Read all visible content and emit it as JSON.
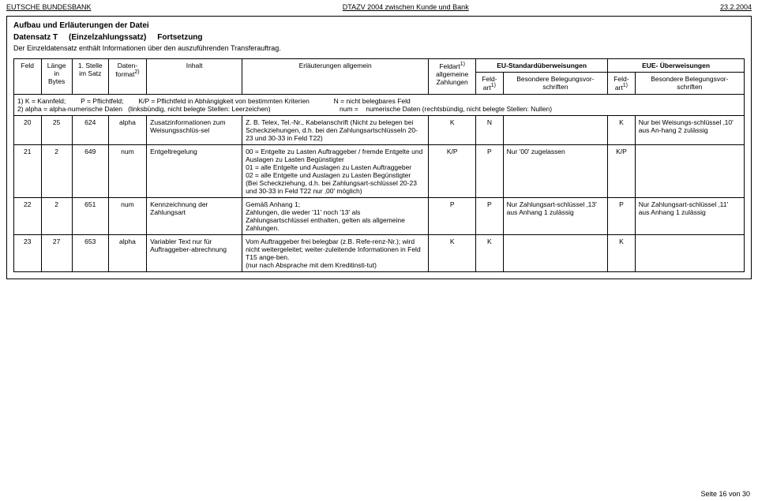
{
  "header": {
    "left": "EUTSCHE BUNDESBANK",
    "center": "DTAZV 2004 zwischen Kunde und Bank",
    "right": "23.2.2004"
  },
  "section": {
    "title": "Aufbau und Erläuterungen der Datei",
    "subPrefix": "Datensatz T",
    "subParen": "(Einzelzahlungssatz)",
    "subSuffix": "Fortsetzung",
    "desc": "Der Einzeldatensatz enthält Informationen über den auszuführenden Transferauftrag."
  },
  "cols": {
    "feld": "Feld",
    "len": "Länge in Bytes",
    "stelle": "1. Stelle im Satz",
    "format": "Daten-format",
    "formatSup": "2)",
    "inhalt": "Inhalt",
    "erl": "Erläuterungen allgemein",
    "feldart": "Feldart",
    "feldartSup": "1)",
    "feldartSub": "allgemeine Zahlungen",
    "eu": "EU-Standardüberweisungen",
    "eue": "EUE- Überweisungen",
    "subFeldart": "Feld-art",
    "subFeldartSup": "1)",
    "subBeleg": "Besondere Belegungsvor-schriften"
  },
  "legend": {
    "l1a": "1) K = Kannfeld;",
    "l1b": "P = Pflichtfeld;",
    "l1c": "K/P = Pflichtfeld in Abhängigkeit von bestimmten Kriterien",
    "l1d": "N = nicht belegbares Feld",
    "l2a": "2) alpha = alpha-numerische Daten",
    "l2b": "(linksbündig, nicht belegte Stellen: Leerzeichen)",
    "l2c": "num =",
    "l2d": "numerische Daten (rechtsbündig, nicht belegte Stellen: Nullen)"
  },
  "rows": [
    {
      "feld": "20",
      "len": "25",
      "stelle": "624",
      "fmt": "alpha",
      "inhalt": "Zusatzinformationen zum Weisungsschlüs-sel",
      "erl": "Z. B. Telex, Tel.-Nr., Kabelanschrift (Nicht zu belegen bei Scheckziehungen, d.h. bei den Zahlungsartschlüsseln 20-23 und 30-33 in Feld T22)",
      "art1": "K",
      "euA": "N",
      "euB": "",
      "eueA": "K",
      "eueB": "Nur bei Weisungs-schlüssel ‚10' aus An-hang 2 zulässig"
    },
    {
      "feld": "21",
      "len": "2",
      "stelle": "649",
      "fmt": "num",
      "inhalt": "Entgeltregelung",
      "erl": "00 = Entgelte zu Lasten Auftraggeber / fremde Entgelte und Auslagen zu Lasten Begünstigter\n01 = alle Entgelte und Auslagen zu Lasten Auftraggeber\n02 = alle Entgelte und Auslagen zu Lasten Begünstigter\n(Bei Scheckziehung, d.h. bei Zahlungsart-schlüssel 20-23 und 30-33 in Feld T22 nur ‚00' möglich)",
      "art1": "K/P",
      "euA": "P",
      "euB": "Nur '00' zugelassen",
      "eueA": "K/P",
      "eueB": ""
    },
    {
      "feld": "22",
      "len": "2",
      "stelle": "651",
      "fmt": "num",
      "inhalt": "Kennzeichnung der Zahlungsart",
      "erl": "Gemäß Anhang 1;\nZahlungen, die weder '11' noch '13' als Zahlungsartschlüssel enthalten, gelten als allgemeine Zahlungen.",
      "art1": "P",
      "euA": "P",
      "euB": "Nur Zahlungsart-schlüssel ‚13' aus Anhang 1 zulässig",
      "eueA": "P",
      "eueB": "Nur Zahlungsart-schlüssel ‚11' aus Anhang 1 zulässig"
    },
    {
      "feld": "23",
      "len": "27",
      "stelle": "653",
      "fmt": "alpha",
      "inhalt": "Variabler Text nur für Auftraggeber-abrechnung",
      "erl": "Vom Auftraggeber frei belegbar (z.B. Refe-renz-Nr.); wird nicht weitergeleitet; weiter-zuleitende Informationen in Feld T15 ange-ben.\n(nur nach Absprache mit dem Kreditinsti-tut)",
      "art1": "K",
      "euA": "K",
      "euB": "",
      "eueA": "K",
      "eueB": ""
    }
  ],
  "footer": "Seite 16 von 30"
}
